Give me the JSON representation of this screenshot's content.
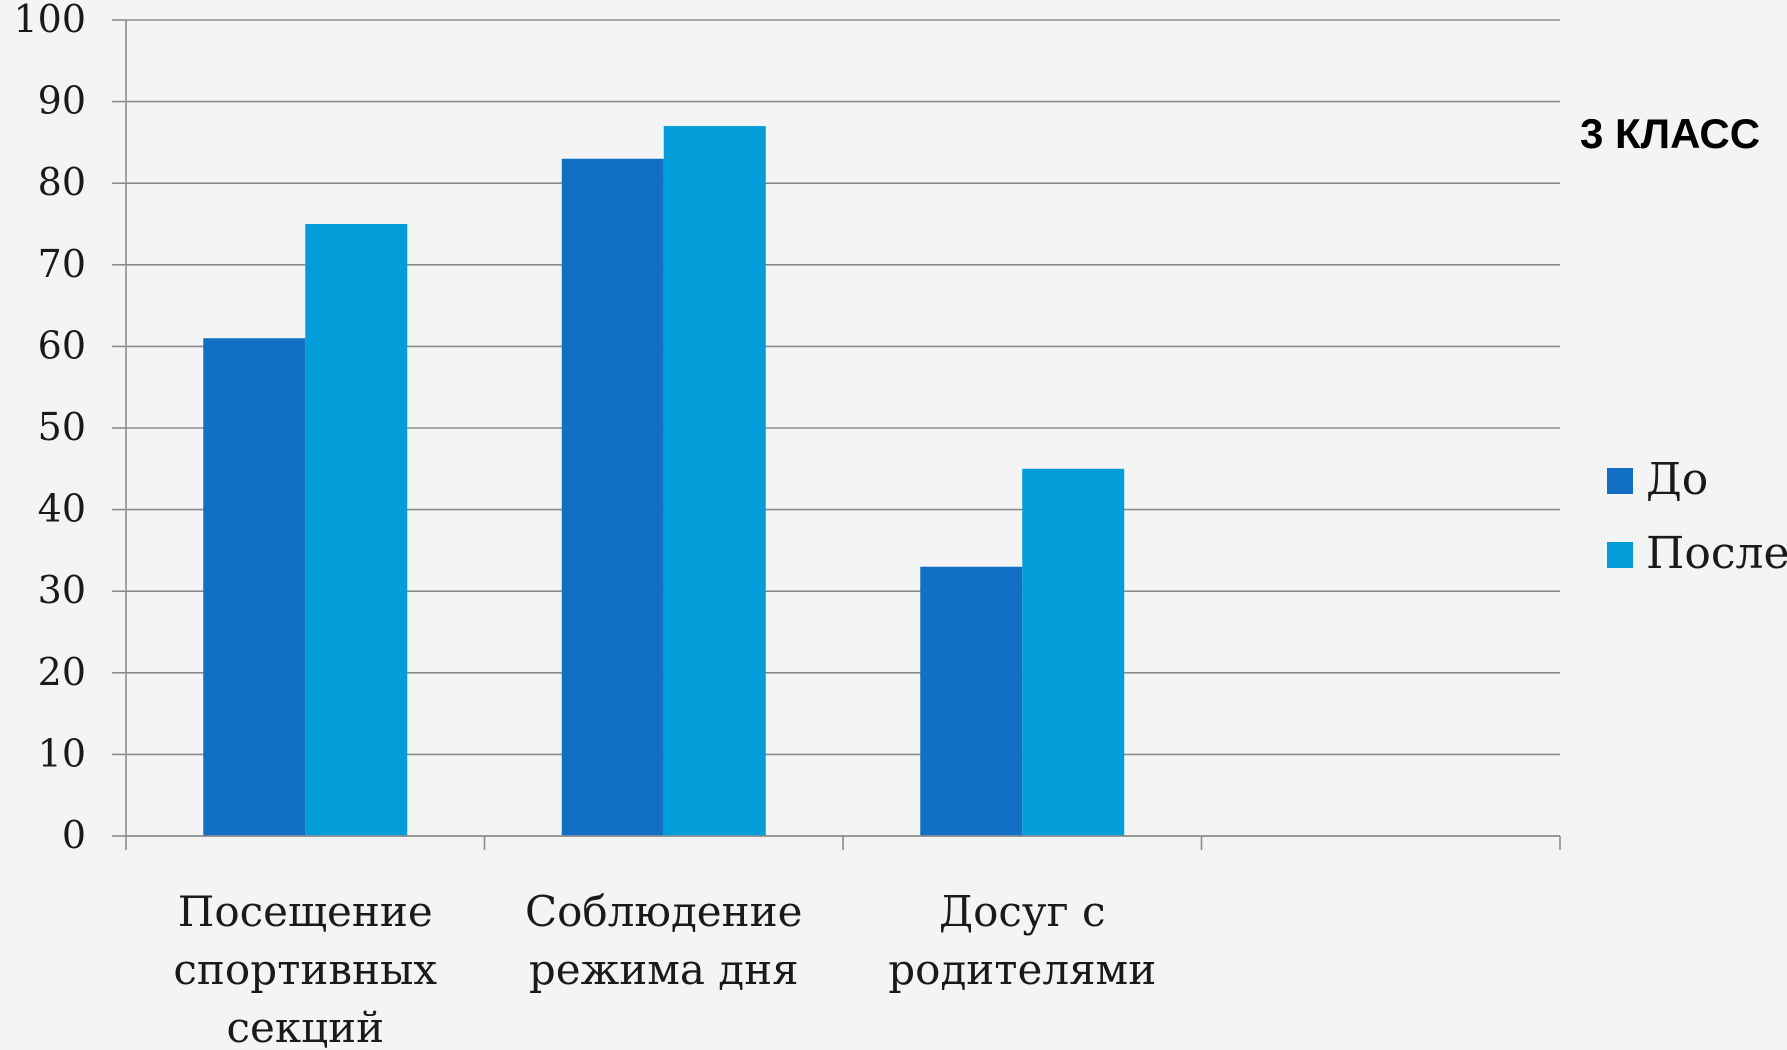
{
  "chart_data": {
    "type": "bar",
    "title": "3 КЛАСС",
    "categories": [
      [
        "Посещение",
        "спортивных",
        "секций"
      ],
      [
        "Соблюдение",
        "режима дня"
      ],
      [
        "Досуг с",
        "родителями"
      ],
      []
    ],
    "series": [
      {
        "name": "До",
        "color": "#1170c4",
        "values": [
          61,
          83,
          33,
          null
        ]
      },
      {
        "name": "После",
        "color": "#039dd9",
        "values": [
          75,
          87,
          45,
          null
        ]
      }
    ],
    "ylim": [
      0,
      100
    ],
    "yticks": [
      0,
      10,
      20,
      30,
      40,
      50,
      60,
      70,
      80,
      90,
      100
    ],
    "grid": true,
    "legend_position": "right",
    "xlabel": "",
    "ylabel": ""
  }
}
